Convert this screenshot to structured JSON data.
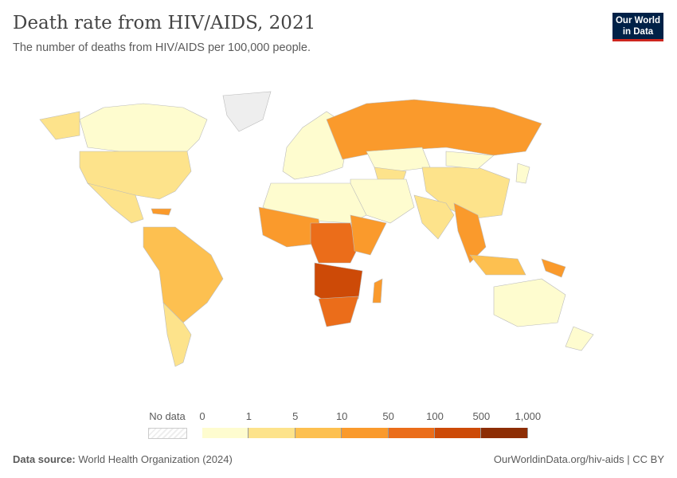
{
  "header": {
    "title": "Death rate from HIV/AIDS, 2021",
    "subtitle": "The number of deaths from HIV/AIDS per 100,000 people.",
    "logo": "Our World in Data"
  },
  "legend": {
    "no_data_label": "No data",
    "ticks": [
      "0",
      "1",
      "5",
      "10",
      "50",
      "100",
      "500",
      "1,000"
    ],
    "colors": [
      "#fefccf",
      "#fde38b",
      "#fdc050",
      "#fa9a2c",
      "#eb6d1a",
      "#cd4a07",
      "#8d2d04"
    ],
    "no_data_color": "#eeeeee"
  },
  "map_regions": [
    {
      "name": "Canada",
      "bin": 0
    },
    {
      "name": "United States",
      "bin": 1
    },
    {
      "name": "Mexico",
      "bin": 1
    },
    {
      "name": "Caribbean",
      "bin": 3
    },
    {
      "name": "South America",
      "bin": 2
    },
    {
      "name": "Argentina",
      "bin": 1
    },
    {
      "name": "Greenland",
      "bin": -1
    },
    {
      "name": "Alaska",
      "bin": 1
    },
    {
      "name": "Europe",
      "bin": 0
    },
    {
      "name": "Russia",
      "bin": 3
    },
    {
      "name": "Kazakhstan",
      "bin": 0
    },
    {
      "name": "Central Asia",
      "bin": 1
    },
    {
      "name": "China",
      "bin": 1
    },
    {
      "name": "Mongolia",
      "bin": 0
    },
    {
      "name": "India",
      "bin": 1
    },
    {
      "name": "Middle East",
      "bin": 0
    },
    {
      "name": "North Africa",
      "bin": 0
    },
    {
      "name": "West Africa",
      "bin": 3
    },
    {
      "name": "Central Africa",
      "bin": 4
    },
    {
      "name": "East Africa",
      "bin": 3
    },
    {
      "name": "Southern Africa",
      "bin": 5
    },
    {
      "name": "South Africa",
      "bin": 4
    },
    {
      "name": "Madagascar",
      "bin": 3
    },
    {
      "name": "Southeast Asia",
      "bin": 3
    },
    {
      "name": "Indonesia",
      "bin": 2
    },
    {
      "name": "Papua New Guinea",
      "bin": 3
    },
    {
      "name": "Australia",
      "bin": 0
    },
    {
      "name": "New Zealand",
      "bin": 0
    },
    {
      "name": "Japan",
      "bin": 0
    }
  ],
  "footer": {
    "source_label": "Data source:",
    "source": "World Health Organization (2024)",
    "link": "OurWorldinData.org/hiv-aids | CC BY"
  }
}
